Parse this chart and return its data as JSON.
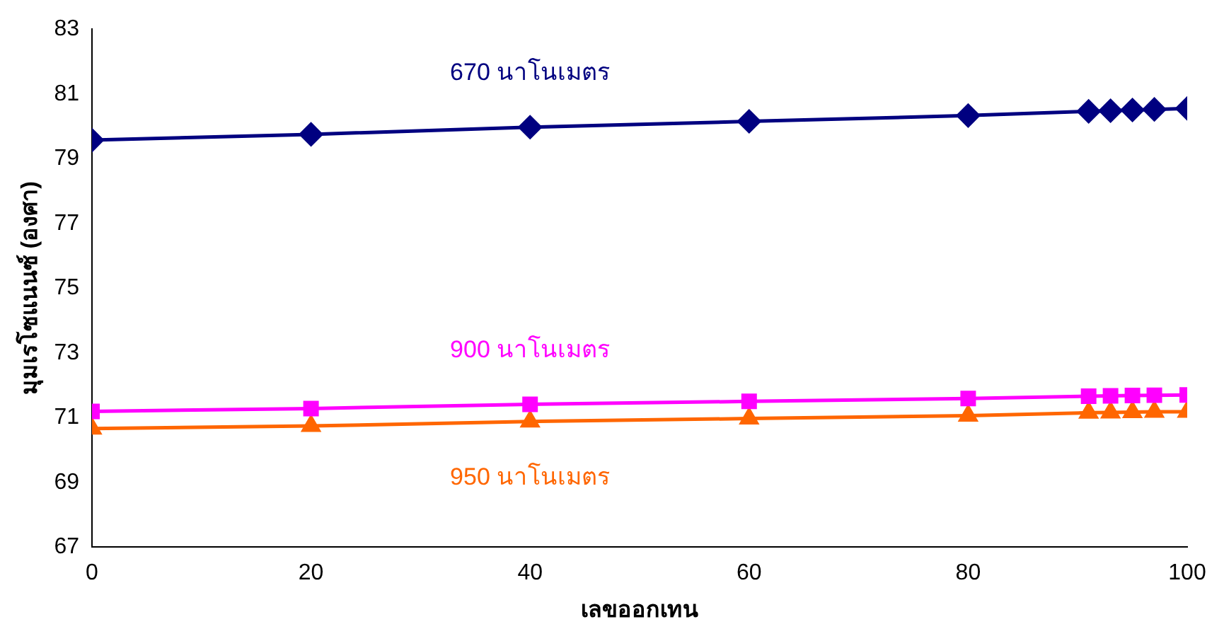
{
  "chart_data": {
    "type": "line",
    "xlabel": "เลขออกเทน",
    "ylabel": "มุมเรโซแนนซ์ (องศา)",
    "x": [
      0,
      20,
      40,
      60,
      80,
      91,
      93,
      95,
      97,
      100
    ],
    "series": [
      {
        "name": "670 นาโนเมตร",
        "color": "#000080",
        "marker": "diamond",
        "values": [
          79.57,
          79.75,
          79.97,
          80.15,
          80.33,
          80.46,
          80.48,
          80.5,
          80.52,
          80.55
        ]
      },
      {
        "name": "900 นาโนเมตร",
        "color": "#ff00ff",
        "marker": "square",
        "values": [
          71.19,
          71.28,
          71.41,
          71.5,
          71.59,
          71.66,
          71.67,
          71.68,
          71.69,
          71.7
        ]
      },
      {
        "name": "950 นาโนเมตร",
        "color": "#ff6600",
        "marker": "triangle",
        "values": [
          70.66,
          70.74,
          70.88,
          70.97,
          71.06,
          71.15,
          71.16,
          71.17,
          71.18,
          71.18
        ]
      }
    ],
    "xlim": [
      0,
      100
    ],
    "xticks": [
      0,
      20,
      40,
      60,
      80,
      100
    ],
    "ylim": [
      67,
      83
    ],
    "yticks": [
      67,
      69,
      71,
      73,
      75,
      77,
      79,
      81,
      83
    ],
    "grid": false,
    "legend": false
  }
}
